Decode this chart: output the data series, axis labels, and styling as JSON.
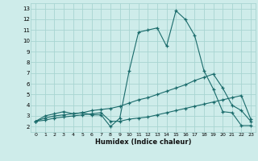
{
  "xlabel": "Humidex (Indice chaleur)",
  "bg_color": "#ceecea",
  "grid_color": "#a8d5d2",
  "line_color": "#1a6b6b",
  "xlim": [
    -0.5,
    23.5
  ],
  "ylim": [
    1.5,
    13.5
  ],
  "xticks": [
    0,
    1,
    2,
    3,
    4,
    5,
    6,
    7,
    8,
    9,
    10,
    11,
    12,
    13,
    14,
    15,
    16,
    17,
    18,
    19,
    20,
    21,
    22,
    23
  ],
  "yticks": [
    2,
    3,
    4,
    5,
    6,
    7,
    8,
    9,
    10,
    11,
    12,
    13
  ],
  "series1_x": [
    0,
    1,
    2,
    3,
    4,
    5,
    6,
    7,
    8,
    9,
    10,
    11,
    12,
    13,
    14,
    15,
    16,
    17,
    18,
    19,
    20,
    21,
    22,
    23
  ],
  "series1_y": [
    2.5,
    3.0,
    3.2,
    3.4,
    3.2,
    3.3,
    3.1,
    3.1,
    2.0,
    2.8,
    7.2,
    10.8,
    11.0,
    11.2,
    9.5,
    12.8,
    12.0,
    10.5,
    7.2,
    5.5,
    3.4,
    3.3,
    2.1,
    2.1
  ],
  "series2_x": [
    0,
    1,
    2,
    3,
    4,
    5,
    6,
    7,
    8,
    9,
    10,
    11,
    12,
    13,
    14,
    15,
    16,
    17,
    18,
    19,
    20,
    21,
    22,
    23
  ],
  "series2_y": [
    2.5,
    2.8,
    3.0,
    3.1,
    3.2,
    3.3,
    3.5,
    3.6,
    3.7,
    3.9,
    4.2,
    4.5,
    4.7,
    5.0,
    5.3,
    5.6,
    5.9,
    6.3,
    6.6,
    6.9,
    5.6,
    4.0,
    3.5,
    2.5
  ],
  "series3_x": [
    0,
    1,
    2,
    3,
    4,
    5,
    6,
    7,
    8,
    9,
    10,
    11,
    12,
    13,
    14,
    15,
    16,
    17,
    18,
    19,
    20,
    21,
    22,
    23
  ],
  "series3_y": [
    2.5,
    2.6,
    2.8,
    2.9,
    3.0,
    3.1,
    3.2,
    3.3,
    2.5,
    2.5,
    2.7,
    2.8,
    2.9,
    3.1,
    3.3,
    3.5,
    3.7,
    3.9,
    4.1,
    4.3,
    4.5,
    4.7,
    4.9,
    2.7
  ]
}
